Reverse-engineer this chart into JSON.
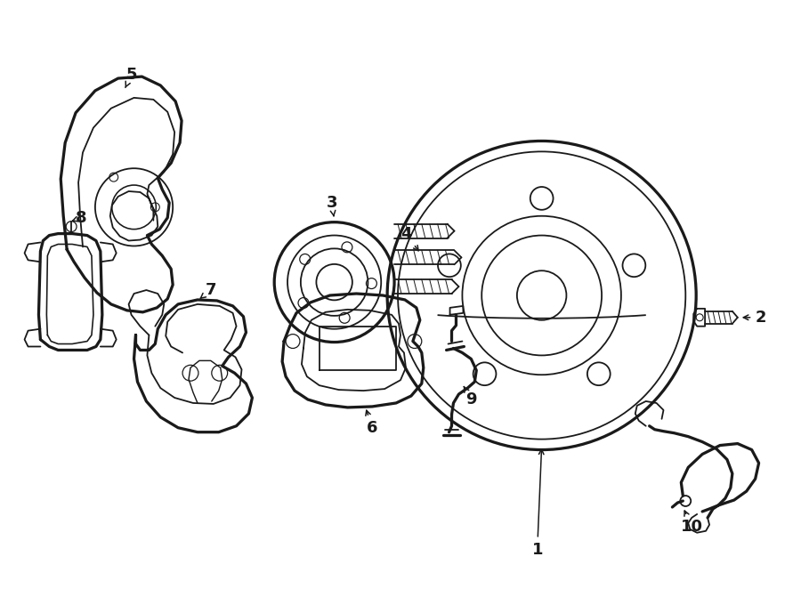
{
  "bg_color": "#ffffff",
  "line_color": "#1a1a1a",
  "lw": 1.3,
  "fig_width": 9.0,
  "fig_height": 6.62,
  "dpi": 100
}
